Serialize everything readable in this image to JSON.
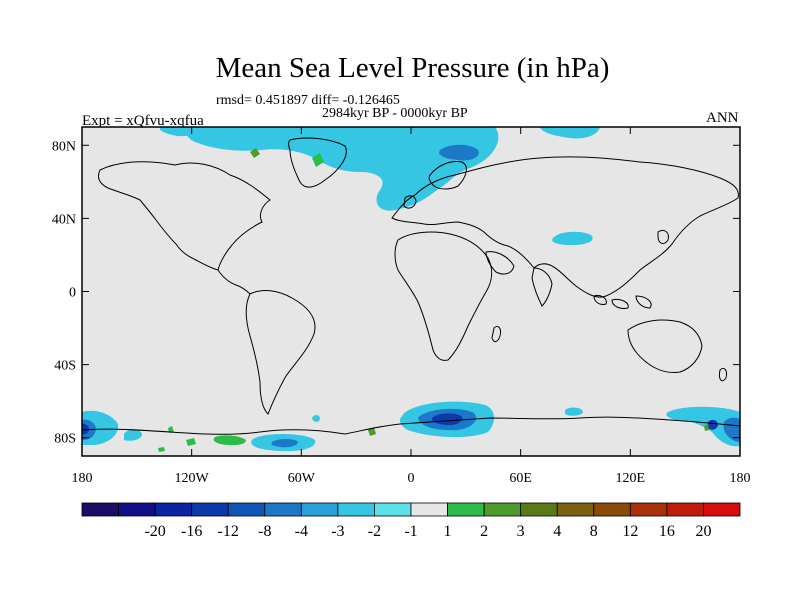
{
  "header": {
    "title": "Mean Sea Level Pressure (in hPa)",
    "rmsd_line": "rmsd= 0.451897 diff= -0.126465",
    "period": "2984kyr BP - 0000kyr BP",
    "experiment": "Expt = xQfvu-xqfua",
    "season": "ANN"
  },
  "axes": {
    "x_ticks": [
      "180",
      "120W",
      "60W",
      "0",
      "60E",
      "120E",
      "180"
    ],
    "x_values": [
      -180,
      -120,
      -60,
      0,
      60,
      120,
      180
    ],
    "y_ticks": [
      "80N",
      "40N",
      "0",
      "40S",
      "80S"
    ],
    "y_values": [
      80,
      40,
      0,
      -40,
      -80
    ],
    "lon_range": [
      -180,
      180
    ],
    "lat_range": [
      -90,
      90
    ]
  },
  "colorbar": {
    "labels": [
      "-20",
      "-16",
      "-12",
      "-8",
      "-4",
      "-3",
      "-2",
      "-1",
      "1",
      "2",
      "3",
      "4",
      "8",
      "12",
      "16",
      "20"
    ],
    "colors": [
      "#1a0d66",
      "#120f8a",
      "#0b25a0",
      "#0d3aaa",
      "#0f55b5",
      "#1d78c8",
      "#2aa0d8",
      "#34c6e3",
      "#5de0e8",
      "#e6e6e6",
      "#2dbb4a",
      "#4e9a2a",
      "#5a7a18",
      "#7a6010",
      "#8a4a0a",
      "#a8300a",
      "#c01c0c",
      "#d80c0c"
    ]
  },
  "colors": {
    "land_background": "#e6e6e6",
    "light_cyan": "#34c6e3",
    "mid_blue": "#1d78c8",
    "dark_blue": "#0d3aaa",
    "green": "#2dbb4a"
  }
}
